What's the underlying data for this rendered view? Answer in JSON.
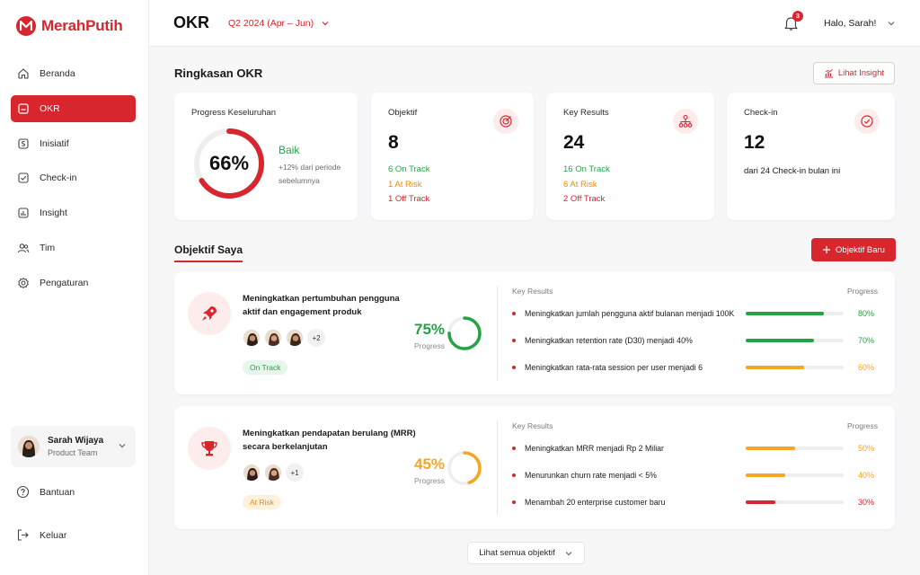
{
  "brand": {
    "name": "MerahPutih",
    "accent": "#d7262d"
  },
  "sidebar": {
    "items": [
      {
        "label": "Beranda",
        "icon": "home-icon"
      },
      {
        "label": "OKR",
        "icon": "okr-icon",
        "active": true
      },
      {
        "label": "Inisiatif",
        "icon": "initiative-icon"
      },
      {
        "label": "Check-in",
        "icon": "checkin-icon"
      },
      {
        "label": "Insight",
        "icon": "insight-icon"
      },
      {
        "label": "Tim",
        "icon": "team-icon"
      },
      {
        "label": "Pengaturan",
        "icon": "gear-icon"
      }
    ],
    "user": {
      "name": "Sarah Wijaya",
      "role": "Product Team"
    },
    "help_label": "Bantuan",
    "logout_label": "Keluar"
  },
  "header": {
    "title": "OKR",
    "period": "Q2 2024 (Apr – Jun)",
    "notification_count": "3",
    "greeting": "Halo, Sarah!"
  },
  "summary": {
    "title": "Ringkasan OKR",
    "insight_button": "Lihat Insight",
    "overall": {
      "label": "Progress Keseluruhan",
      "percent_text": "66%",
      "percent": 66,
      "status": "Baik",
      "note": "+12% dari periode sebelumnya"
    },
    "objectives": {
      "label": "Objektif",
      "value": "8",
      "on_track": "6 On Track",
      "at_risk": "1 At Risk",
      "off_track": "1 Off Track"
    },
    "key_results": {
      "label": "Key Results",
      "value": "24",
      "on_track": "16 On Track",
      "at_risk": "6 At Risk",
      "off_track": "2 Off Track"
    },
    "checkin": {
      "label": "Check-in",
      "value": "12",
      "note": "dari 24 Check-in bulan ini"
    }
  },
  "objectives_section": {
    "tab_label": "Objektif Saya",
    "new_button": "Objektif Baru",
    "kr_header": "Key Results",
    "progress_header": "Progress",
    "progress_label": "Progress",
    "see_all": "Lihat semua objektif",
    "items": [
      {
        "title": "Meningkatkan pertumbuhan pengguna aktif dan engagement produk",
        "icon": "rocket-icon",
        "extra_members": "+2",
        "status": "On Track",
        "percent_text": "75%",
        "percent": 75,
        "color": "#25a244",
        "key_results": [
          {
            "text": "Meningkatkan jumlah pengguna aktif bulanan menjadi 100K",
            "value_text": "80%",
            "value": 80,
            "color": "#25a244"
          },
          {
            "text": "Meningkatkan retention rate (D30) menjadi 40%",
            "value_text": "70%",
            "value": 70,
            "color": "#25a244"
          },
          {
            "text": "Meningkatkan rata-rata session per user menjadi 6",
            "value_text": "60%",
            "value": 60,
            "color": "#f5a623"
          }
        ]
      },
      {
        "title": "Meningkatkan pendapatan berulang (MRR) secara berkelanjutan",
        "icon": "trophy-icon",
        "extra_members": "+1",
        "status": "At Risk",
        "percent_text": "45%",
        "percent": 45,
        "color": "#f5a623",
        "key_results": [
          {
            "text": "Meningkatkan MRR menjadi Rp 2 Miliar",
            "value_text": "50%",
            "value": 50,
            "color": "#f5a623"
          },
          {
            "text": "Menurunkan churn rate menjadi < 5%",
            "value_text": "40%",
            "value": 40,
            "color": "#f5a623"
          },
          {
            "text": "Menambah 20 enterprise customer baru",
            "value_text": "30%",
            "value": 30,
            "color": "#d7262d"
          }
        ]
      }
    ]
  }
}
